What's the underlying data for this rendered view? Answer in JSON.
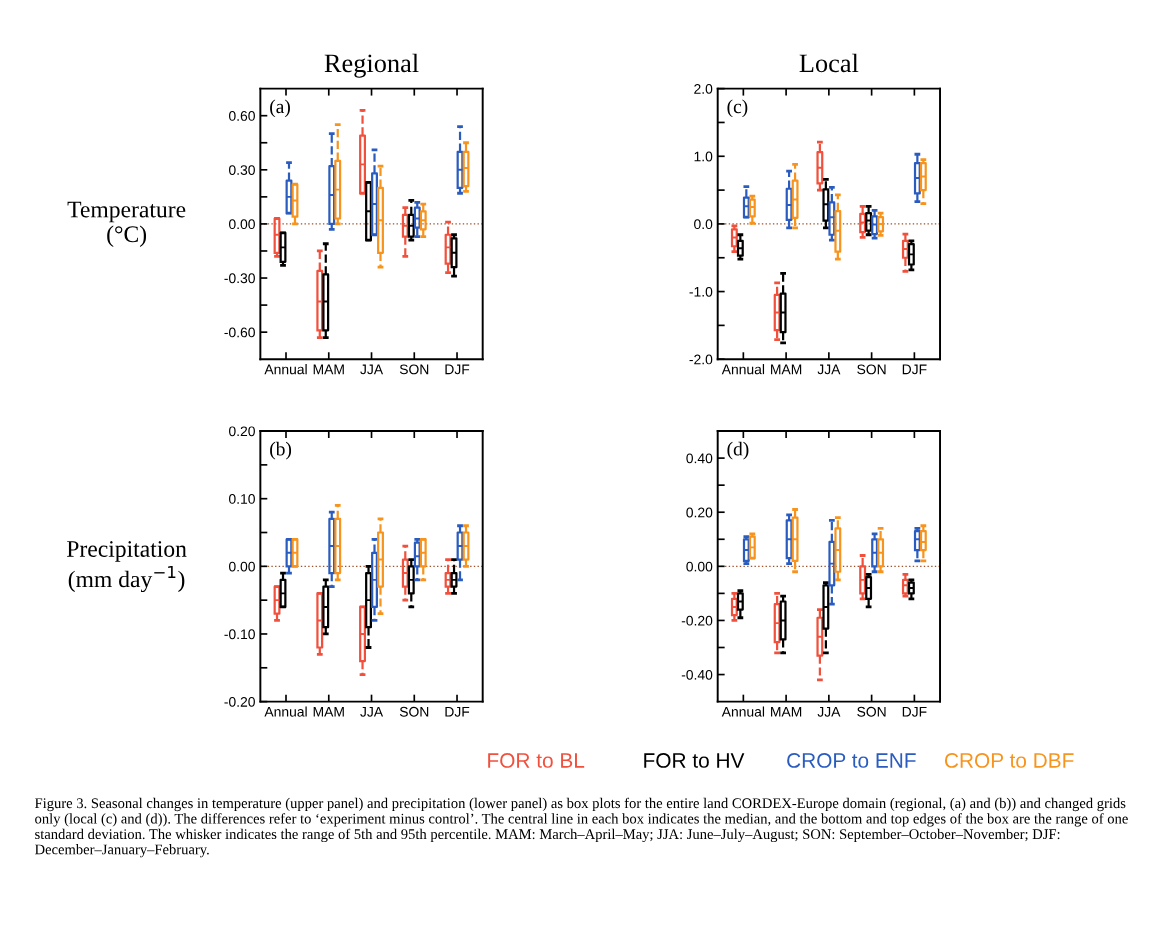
{
  "chart_data": [
    {
      "type": "box",
      "title": "Regional",
      "ylabel": "Temperature\n(°C)",
      "categories": [
        "Annual",
        "MAM",
        "JJA",
        "SON",
        "DJF"
      ],
      "ylim": [
        -0.75,
        0.75
      ],
      "yticks": [
        {
          "value": -0.6,
          "label": "-0.60"
        },
        {
          "value": -0.45,
          "label": null
        },
        {
          "value": -0.3,
          "label": "-0.30"
        },
        {
          "value": -0.15,
          "label": null
        },
        {
          "value": 0,
          "label": "0.00"
        },
        {
          "value": 0.15,
          "label": null
        },
        {
          "value": 0.3,
          "label": "0.30"
        },
        {
          "value": 0.45,
          "label": null
        },
        {
          "value": 0.6,
          "label": "0.60"
        }
      ],
      "ref_lines": [
        {
          "axis": "y",
          "value": 0,
          "color": "#a0522d",
          "line_style": "dotted"
        }
      ],
      "annotations": [
        "(a)"
      ],
      "series": [
        {
          "color": "#f0503c",
          "boxes": [
            {
              "low": -0.18,
              "q1": -0.16,
              "median": -0.06,
              "q3": 0.03,
              "high": 0.03
            },
            {
              "low": -0.63,
              "q1": -0.59,
              "median": -0.43,
              "q3": -0.26,
              "high": -0.15
            },
            {
              "low": 0.17,
              "q1": 0.17,
              "median": 0.33,
              "q3": 0.49,
              "high": 0.63
            },
            {
              "low": -0.18,
              "q1": -0.07,
              "median": -0.01,
              "q3": 0.05,
              "high": 0.09
            },
            {
              "low": -0.27,
              "q1": -0.22,
              "median": -0.13,
              "q3": -0.06,
              "high": 0.01
            }
          ]
        },
        {
          "color": "#000000",
          "boxes": [
            {
              "low": -0.23,
              "q1": -0.21,
              "median": -0.13,
              "q3": -0.05,
              "high": -0.05
            },
            {
              "low": -0.63,
              "q1": -0.59,
              "median": -0.43,
              "q3": -0.28,
              "high": -0.11
            },
            {
              "low": -0.09,
              "q1": -0.09,
              "median": 0.07,
              "q3": 0.23,
              "high": 0.23
            },
            {
              "low": -0.09,
              "q1": -0.07,
              "median": -0.01,
              "q3": 0.05,
              "high": 0.13
            },
            {
              "low": -0.29,
              "q1": -0.24,
              "median": -0.16,
              "q3": -0.08,
              "high": -0.06
            }
          ]
        },
        {
          "color": "#2a5cc0",
          "boxes": [
            {
              "low": 0.06,
              "q1": 0.06,
              "median": 0.15,
              "q3": 0.24,
              "high": 0.34
            },
            {
              "low": -0.03,
              "q1": 0.0,
              "median": 0.16,
              "q3": 0.32,
              "high": 0.5
            },
            {
              "low": -0.06,
              "q1": -0.06,
              "median": 0.11,
              "q3": 0.28,
              "high": 0.41
            },
            {
              "low": -0.07,
              "q1": -0.02,
              "median": 0.03,
              "q3": 0.09,
              "high": 0.12
            },
            {
              "low": 0.17,
              "q1": 0.2,
              "median": 0.3,
              "q3": 0.4,
              "high": 0.54
            }
          ]
        },
        {
          "color": "#f7941d",
          "boxes": [
            {
              "low": 0.0,
              "q1": 0.04,
              "median": 0.13,
              "q3": 0.22,
              "high": 0.22
            },
            {
              "low": 0.0,
              "q1": 0.03,
              "median": 0.19,
              "q3": 0.35,
              "high": 0.55
            },
            {
              "low": -0.24,
              "q1": -0.16,
              "median": 0.02,
              "q3": 0.2,
              "high": 0.32
            },
            {
              "low": -0.07,
              "q1": -0.03,
              "median": 0.02,
              "q3": 0.07,
              "high": 0.11
            },
            {
              "low": 0.18,
              "q1": 0.21,
              "median": 0.31,
              "q3": 0.4,
              "high": 0.45
            }
          ]
        }
      ]
    },
    {
      "type": "box",
      "title": "Local",
      "categories": [
        "Annual",
        "MAM",
        "JJA",
        "SON",
        "DJF"
      ],
      "ylim": [
        -2.0,
        2.0
      ],
      "yticks": [
        {
          "value": -2,
          "label": "-2.0"
        },
        {
          "value": -1.5,
          "label": null
        },
        {
          "value": -1,
          "label": "-1.0"
        },
        {
          "value": -0.5,
          "label": null
        },
        {
          "value": 0,
          "label": "0.0"
        },
        {
          "value": 0.5,
          "label": null
        },
        {
          "value": 1,
          "label": "1.0"
        },
        {
          "value": 1.5,
          "label": null
        },
        {
          "value": 2,
          "label": "2.0"
        }
      ],
      "ref_lines": [
        {
          "axis": "y",
          "value": 0,
          "color": "#a0522d",
          "line_style": "dotted"
        }
      ],
      "annotations": [
        "(c)"
      ],
      "series": [
        {
          "color": "#f0503c",
          "boxes": [
            {
              "low": -0.41,
              "q1": -0.33,
              "median": -0.2,
              "q3": -0.08,
              "high": -0.03
            },
            {
              "low": -1.71,
              "q1": -1.57,
              "median": -1.31,
              "q3": -1.05,
              "high": -0.87
            },
            {
              "low": 0.5,
              "q1": 0.6,
              "median": 0.83,
              "q3": 1.06,
              "high": 1.21
            },
            {
              "low": -0.2,
              "q1": -0.12,
              "median": 0.02,
              "q3": 0.15,
              "high": 0.26
            },
            {
              "low": -0.7,
              "q1": -0.5,
              "median": -0.37,
              "q3": -0.25,
              "high": -0.15
            }
          ]
        },
        {
          "color": "#000000",
          "boxes": [
            {
              "low": -0.52,
              "q1": -0.47,
              "median": -0.36,
              "q3": -0.25,
              "high": -0.16
            },
            {
              "low": -1.76,
              "q1": -1.6,
              "median": -1.31,
              "q3": -1.03,
              "high": -0.73
            },
            {
              "low": -0.06,
              "q1": 0.05,
              "median": 0.29,
              "q3": 0.51,
              "high": 0.66
            },
            {
              "low": -0.16,
              "q1": -0.1,
              "median": 0.05,
              "q3": 0.16,
              "high": 0.26
            },
            {
              "low": -0.68,
              "q1": -0.6,
              "median": -0.45,
              "q3": -0.3,
              "high": -0.25
            }
          ]
        },
        {
          "color": "#2a5cc0",
          "boxes": [
            {
              "low": 0.1,
              "q1": 0.1,
              "median": 0.26,
              "q3": 0.39,
              "high": 0.55
            },
            {
              "low": -0.06,
              "q1": 0.06,
              "median": 0.28,
              "q3": 0.52,
              "high": 0.78
            },
            {
              "low": -0.24,
              "q1": -0.16,
              "median": 0.1,
              "q3": 0.32,
              "high": 0.54
            },
            {
              "low": -0.21,
              "q1": -0.15,
              "median": -0.01,
              "q3": 0.11,
              "high": 0.2
            },
            {
              "low": 0.33,
              "q1": 0.45,
              "median": 0.68,
              "q3": 0.9,
              "high": 1.03
            }
          ]
        },
        {
          "color": "#f7941d",
          "boxes": [
            {
              "low": 0.01,
              "q1": 0.11,
              "median": 0.25,
              "q3": 0.36,
              "high": 0.41
            },
            {
              "low": -0.06,
              "q1": 0.09,
              "median": 0.36,
              "q3": 0.64,
              "high": 0.88
            },
            {
              "low": -0.52,
              "q1": -0.41,
              "median": -0.1,
              "q3": 0.19,
              "high": 0.43
            },
            {
              "low": -0.17,
              "q1": -0.11,
              "median": 0.0,
              "q3": 0.1,
              "high": 0.16
            },
            {
              "low": 0.3,
              "q1": 0.5,
              "median": 0.7,
              "q3": 0.9,
              "high": 0.95
            }
          ]
        }
      ]
    },
    {
      "type": "box",
      "ylabel": "Precipitation\n(mm day$^{−1}$)",
      "categories": [
        "Annual",
        "MAM",
        "JJA",
        "SON",
        "DJF"
      ],
      "ylim": [
        -0.2,
        0.2
      ],
      "yticks": [
        {
          "value": -0.2,
          "label": "-0.20"
        },
        {
          "value": -0.15,
          "label": null
        },
        {
          "value": -0.1,
          "label": "-0.10"
        },
        {
          "value": -0.05,
          "label": null
        },
        {
          "value": 0,
          "label": "0.00"
        },
        {
          "value": 0.05,
          "label": null
        },
        {
          "value": 0.1,
          "label": "0.10"
        },
        {
          "value": 0.15,
          "label": null
        },
        {
          "value": 0.2,
          "label": "0.20"
        }
      ],
      "ref_lines": [
        {
          "axis": "y",
          "value": 0,
          "color": "#a0522d",
          "line_style": "dotted"
        }
      ],
      "annotations": [
        "(b)"
      ],
      "series": [
        {
          "color": "#f0503c",
          "boxes": [
            {
              "low": -0.08,
              "q1": -0.07,
              "median": -0.05,
              "q3": -0.03,
              "high": -0.03
            },
            {
              "low": -0.13,
              "q1": -0.12,
              "median": -0.08,
              "q3": -0.04,
              "high": -0.04
            },
            {
              "low": -0.16,
              "q1": -0.14,
              "median": -0.1,
              "q3": -0.06,
              "high": -0.06
            },
            {
              "low": -0.05,
              "q1": -0.03,
              "median": -0.01,
              "q3": 0.01,
              "high": 0.03
            },
            {
              "low": -0.04,
              "q1": -0.03,
              "median": -0.02,
              "q3": -0.01,
              "high": 0.01
            }
          ]
        },
        {
          "color": "#000000",
          "boxes": [
            {
              "low": -0.06,
              "q1": -0.06,
              "median": -0.04,
              "q3": -0.02,
              "high": -0.01
            },
            {
              "low": -0.1,
              "q1": -0.09,
              "median": -0.06,
              "q3": -0.03,
              "high": -0.02
            },
            {
              "low": -0.12,
              "q1": -0.09,
              "median": -0.05,
              "q3": -0.01,
              "high": 0.0
            },
            {
              "low": -0.06,
              "q1": -0.04,
              "median": -0.02,
              "q3": 0.0,
              "high": 0.01
            },
            {
              "low": -0.04,
              "q1": -0.03,
              "median": -0.02,
              "q3": -0.01,
              "high": 0.01
            }
          ]
        },
        {
          "color": "#2a5cc0",
          "boxes": [
            {
              "low": -0.01,
              "q1": 0.0,
              "median": 0.02,
              "q3": 0.04,
              "high": 0.04
            },
            {
              "low": -0.03,
              "q1": -0.01,
              "median": 0.03,
              "q3": 0.07,
              "high": 0.08
            },
            {
              "low": -0.08,
              "q1": -0.06,
              "median": -0.02,
              "q3": 0.02,
              "high": 0.04
            },
            {
              "low": -0.02,
              "q1": 0.0,
              "median": 0.015,
              "q3": 0.035,
              "high": 0.04
            },
            {
              "low": -0.02,
              "q1": 0.01,
              "median": 0.03,
              "q3": 0.05,
              "high": 0.06
            }
          ]
        },
        {
          "color": "#f7941d",
          "boxes": [
            {
              "low": 0.0,
              "q1": 0.0,
              "median": 0.02,
              "q3": 0.04,
              "high": 0.04
            },
            {
              "low": -0.02,
              "q1": -0.01,
              "median": 0.03,
              "q3": 0.07,
              "high": 0.09
            },
            {
              "low": -0.07,
              "q1": -0.03,
              "median": 0.01,
              "q3": 0.05,
              "high": 0.07
            },
            {
              "low": -0.02,
              "q1": 0.0,
              "median": 0.02,
              "q3": 0.04,
              "high": 0.04
            },
            {
              "low": 0.0,
              "q1": 0.01,
              "median": 0.03,
              "q3": 0.05,
              "high": 0.06
            }
          ]
        }
      ]
    },
    {
      "type": "box",
      "categories": [
        "Annual",
        "MAM",
        "JJA",
        "SON",
        "DJF"
      ],
      "ylim": [
        -0.5,
        0.5
      ],
      "yticks": [
        {
          "value": -0.4,
          "label": "-0.40"
        },
        {
          "value": -0.3,
          "label": null
        },
        {
          "value": -0.2,
          "label": "-0.20"
        },
        {
          "value": -0.1,
          "label": null
        },
        {
          "value": 0,
          "label": "0.00"
        },
        {
          "value": 0.1,
          "label": null
        },
        {
          "value": 0.2,
          "label": "0.20"
        },
        {
          "value": 0.3,
          "label": null
        },
        {
          "value": 0.4,
          "label": "0.40"
        }
      ],
      "ref_lines": [
        {
          "axis": "y",
          "value": 0,
          "color": "#a0522d",
          "line_style": "dotted"
        }
      ],
      "annotations": [
        "(d)",
        "Figure 3. Seasonal changes in temperature (upper panel) and precipitation (lower panel) as box plots for the entire land CORDEX-Europe domain (regional, (a) and (b)) and changed grids only (local (c) and (d)). The differences refer to ‘experiment minus control’. The central line in each box indicates the median, and the bottom and top edges of the box are the range of one standard deviation. The whisker indicates the range of 5th and 95th percentile. MAM: March–April–May; JJA: June–July–August; SON: September–October–November; DJF: December–January–February."
      ],
      "series": [
        {
          "name": "FOR to BL",
          "color": "#f0503c",
          "boxes": [
            {
              "low": -0.2,
              "q1": -0.18,
              "median": -0.15,
              "q3": -0.12,
              "high": -0.1
            },
            {
              "low": -0.32,
              "q1": -0.28,
              "median": -0.21,
              "q3": -0.14,
              "high": -0.1
            },
            {
              "low": -0.42,
              "q1": -0.33,
              "median": -0.26,
              "q3": -0.19,
              "high": -0.16
            },
            {
              "low": -0.12,
              "q1": -0.1,
              "median": -0.05,
              "q3": 0.0,
              "high": 0.04
            },
            {
              "low": -0.11,
              "q1": -0.1,
              "median": -0.07,
              "q3": -0.05,
              "high": -0.03
            }
          ]
        },
        {
          "name": "FOR to HV",
          "color": "#000000",
          "boxes": [
            {
              "low": -0.19,
              "q1": -0.16,
              "median": -0.13,
              "q3": -0.1,
              "high": -0.09
            },
            {
              "low": -0.32,
              "q1": -0.27,
              "median": -0.2,
              "q3": -0.13,
              "high": -0.11
            },
            {
              "low": -0.32,
              "q1": -0.23,
              "median": -0.15,
              "q3": -0.07,
              "high": -0.06
            },
            {
              "low": -0.15,
              "q1": -0.12,
              "median": -0.08,
              "q3": -0.04,
              "high": -0.03
            },
            {
              "low": -0.12,
              "q1": -0.1,
              "median": -0.08,
              "q3": -0.06,
              "high": -0.05
            }
          ]
        },
        {
          "name": "CROP to ENF",
          "color": "#2a5cc0",
          "boxes": [
            {
              "low": 0.01,
              "q1": 0.02,
              "median": 0.06,
              "q3": 0.1,
              "high": 0.11
            },
            {
              "low": 0.01,
              "q1": 0.03,
              "median": 0.1,
              "q3": 0.17,
              "high": 0.19
            },
            {
              "low": -0.14,
              "q1": -0.07,
              "median": 0.01,
              "q3": 0.09,
              "high": 0.17
            },
            {
              "low": -0.02,
              "q1": 0.0,
              "median": 0.05,
              "q3": 0.1,
              "high": 0.12
            },
            {
              "low": 0.02,
              "q1": 0.06,
              "median": 0.1,
              "q3": 0.13,
              "high": 0.14
            }
          ]
        },
        {
          "name": "CROP to DBF",
          "color": "#f7941d",
          "boxes": [
            {
              "low": 0.03,
              "q1": 0.03,
              "median": 0.07,
              "q3": 0.11,
              "high": 0.12
            },
            {
              "low": -0.02,
              "q1": 0.02,
              "median": 0.1,
              "q3": 0.18,
              "high": 0.21
            },
            {
              "low": -0.05,
              "q1": -0.02,
              "median": 0.06,
              "q3": 0.14,
              "high": 0.18
            },
            {
              "low": -0.02,
              "q1": 0.0,
              "median": 0.05,
              "q3": 0.1,
              "high": 0.14
            },
            {
              "low": 0.02,
              "q1": 0.06,
              "median": 0.09,
              "q3": 0.13,
              "high": 0.15
            }
          ]
        }
      ]
    }
  ]
}
